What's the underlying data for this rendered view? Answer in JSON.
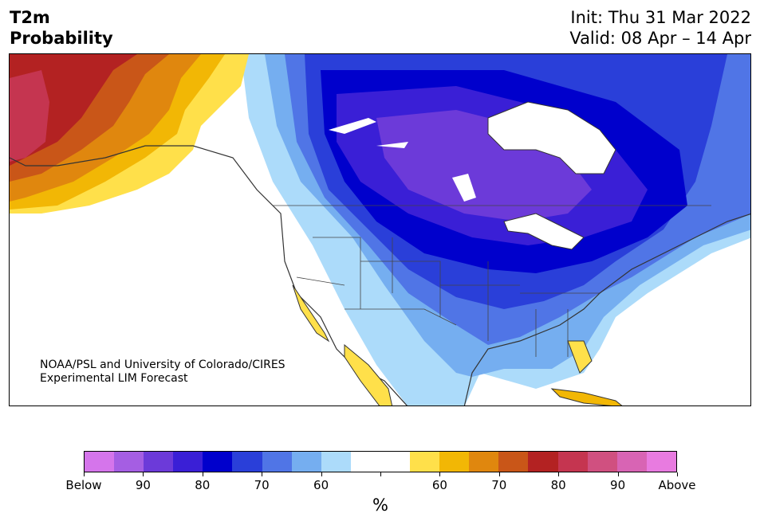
{
  "header": {
    "variable": "T2m",
    "product": "Probability",
    "init": "Init: Thu 31 Mar 2022",
    "valid": "Valid: 08 Apr – 14 Apr"
  },
  "credit": {
    "line1": "NOAA/PSL and University of Colorado/CIRES",
    "line2": "Experimental LIM Forecast"
  },
  "colorbar": {
    "colors": [
      "#d575eb",
      "#a55ee3",
      "#6c3ad9",
      "#3a1fd6",
      "#0000cc",
      "#2a3fd9",
      "#5075e6",
      "#75aef0",
      "#acdbfa",
      "#ffffff",
      "#ffffff",
      "#ffe04a",
      "#f2b705",
      "#e0870e",
      "#c95618",
      "#b32222",
      "#c53550",
      "#d05080",
      "#d864b4",
      "#e87be0"
    ],
    "labels": [
      "Below",
      "90",
      "80",
      "70",
      "60",
      "60",
      "70",
      "80",
      "90",
      "Above"
    ],
    "unit": "%"
  },
  "map": {
    "region": "North America",
    "legend_meaning": "Probability of below/above normal 2m temperature"
  }
}
